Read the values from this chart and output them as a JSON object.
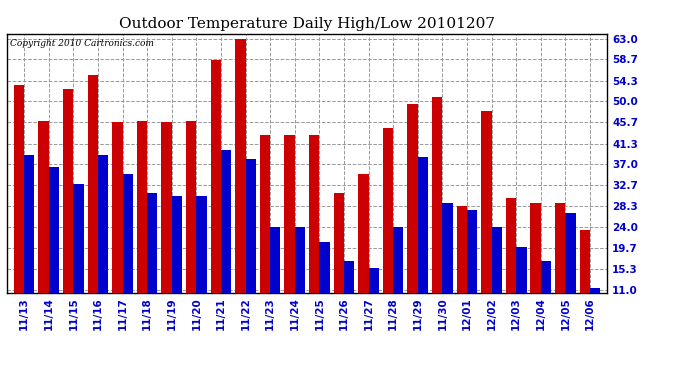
{
  "title": "Outdoor Temperature Daily High/Low 20101207",
  "copyright": "Copyright 2010 Cartronics.com",
  "dates": [
    "11/13",
    "11/14",
    "11/15",
    "11/16",
    "11/17",
    "11/18",
    "11/19",
    "11/20",
    "11/21",
    "11/22",
    "11/23",
    "11/24",
    "11/25",
    "11/26",
    "11/27",
    "11/28",
    "11/29",
    "11/30",
    "12/01",
    "12/02",
    "12/03",
    "12/04",
    "12/05",
    "12/06"
  ],
  "highs": [
    53.5,
    46.0,
    52.5,
    55.5,
    45.7,
    46.0,
    45.7,
    46.0,
    58.5,
    63.0,
    43.0,
    43.0,
    43.0,
    31.0,
    35.0,
    44.5,
    49.5,
    51.0,
    28.3,
    48.0,
    30.0,
    29.0,
    29.0,
    23.5
  ],
  "lows": [
    39.0,
    36.5,
    33.0,
    39.0,
    35.0,
    31.0,
    30.5,
    30.5,
    40.0,
    38.0,
    24.0,
    24.0,
    21.0,
    17.0,
    15.5,
    24.0,
    38.5,
    29.0,
    27.5,
    24.0,
    20.0,
    17.0,
    27.0,
    11.5
  ],
  "high_color": "#cc0000",
  "low_color": "#0000cc",
  "background_color": "#ffffff",
  "plot_bg_color": "#ffffff",
  "grid_color": "#999999",
  "yticks": [
    11.0,
    15.3,
    19.7,
    24.0,
    28.3,
    32.7,
    37.0,
    41.3,
    45.7,
    50.0,
    54.3,
    58.7,
    63.0
  ],
  "ylim": [
    10.5,
    64.0
  ],
  "bar_width": 0.42,
  "title_fontsize": 11,
  "tick_fontsize": 7.5,
  "copyright_fontsize": 6.5
}
